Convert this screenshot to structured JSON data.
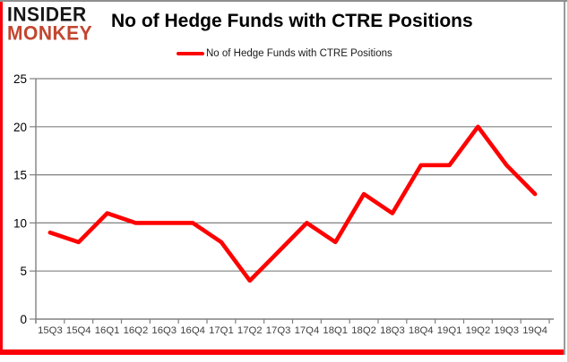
{
  "branding": {
    "logo_line1": "INSIDER",
    "logo_line2": "MONKEY"
  },
  "header": {
    "title": "No of Hedge Funds with CTRE Positions"
  },
  "legend": {
    "label": "No of Hedge Funds with CTRE Positions"
  },
  "colors": {
    "line": "#ff0000",
    "border_red": "#fb0007",
    "grid": "#808080",
    "axis": "#808080",
    "y_label": "#000000",
    "x_label": "#3f3f3f",
    "logo_black": "#161616",
    "logo_red": "#c2452f"
  },
  "chart_data": {
    "type": "line",
    "title": "No of Hedge Funds with CTRE Positions",
    "categories": [
      "15Q3",
      "15Q4",
      "16Q1",
      "16Q2",
      "16Q3",
      "16Q4",
      "17Q1",
      "17Q2",
      "17Q3",
      "17Q4",
      "18Q1",
      "18Q2",
      "18Q3",
      "18Q4",
      "19Q1",
      "19Q2",
      "19Q3",
      "19Q4"
    ],
    "series": [
      {
        "name": "No of Hedge Funds with CTRE Positions",
        "values": [
          9,
          8,
          11,
          10,
          10,
          10,
          8,
          4,
          7,
          10,
          8,
          13,
          11,
          16,
          16,
          20,
          16,
          13
        ]
      }
    ],
    "xlabel": "",
    "ylabel": "",
    "ylim": [
      0,
      25
    ],
    "ytick_interval": 5,
    "y_tick_labels": [
      "0",
      "5",
      "10",
      "15",
      "20",
      "25"
    ],
    "grid": "horizontal",
    "legend_position": "top-center",
    "line_color": "#ff0000"
  }
}
